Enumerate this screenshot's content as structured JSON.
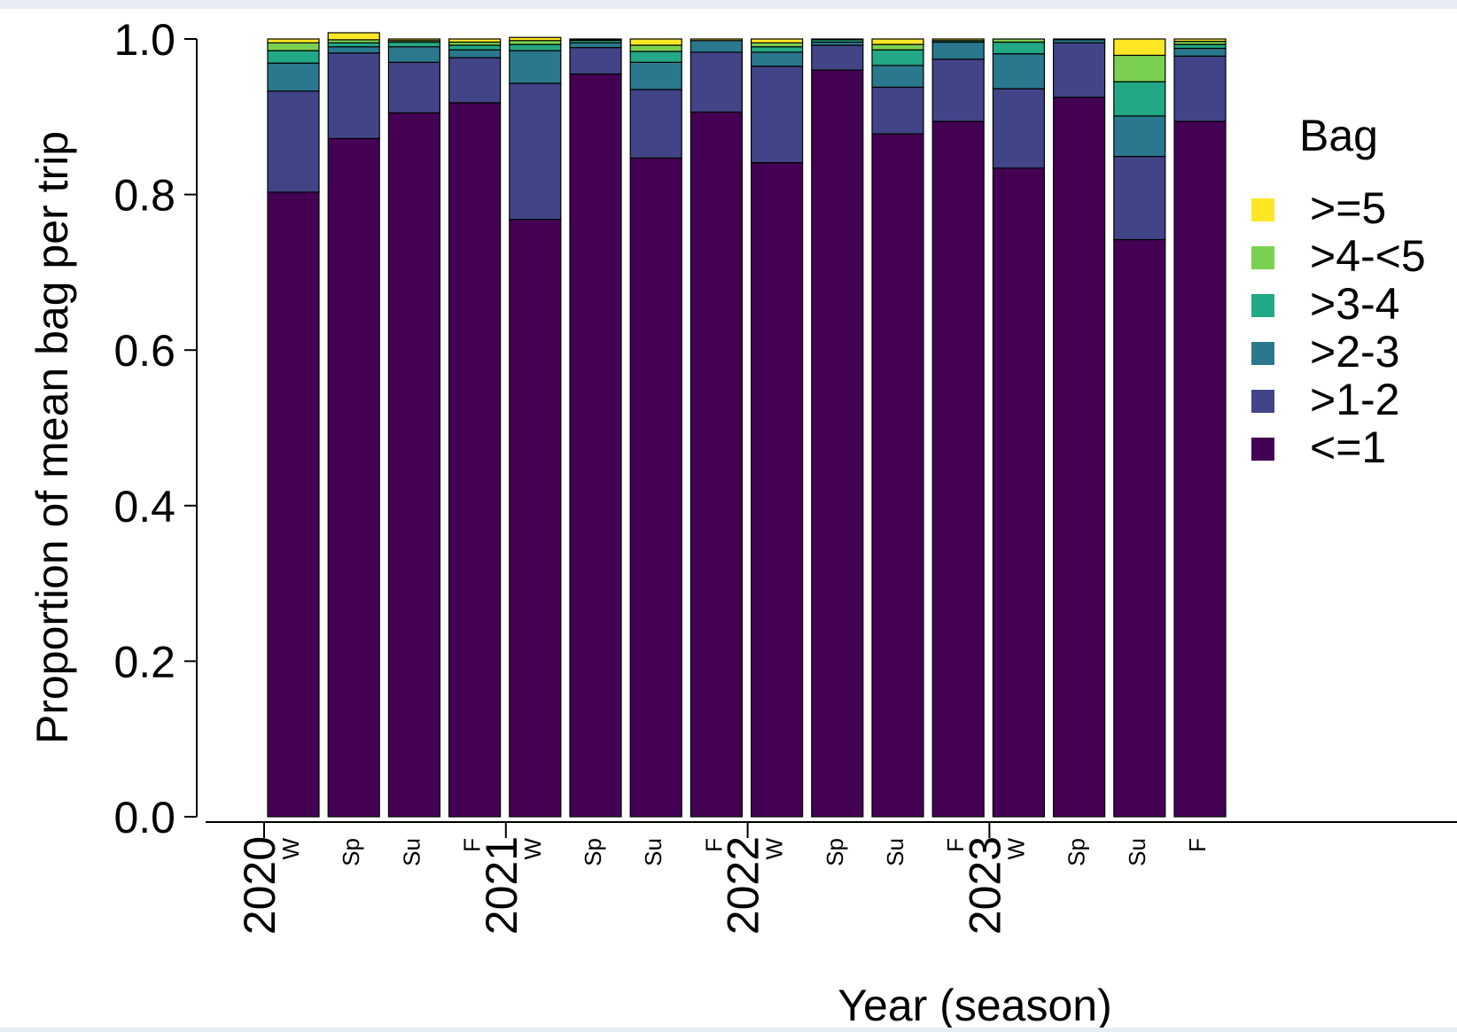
{
  "chart_data": {
    "type": "bar",
    "stacked": true,
    "title": "",
    "xlabel": "Year (season)",
    "ylabel": "Proportion of mean bag per trip",
    "ylim": [
      0,
      1
    ],
    "yticks": [
      "0.0",
      "0.2",
      "0.4",
      "0.6",
      "0.8",
      "1.0"
    ],
    "years": [
      "2020",
      "2021",
      "2022",
      "2023"
    ],
    "seasons_per_year": 4,
    "categories": [
      "W",
      "Sp",
      "Su",
      "F",
      "W",
      "Sp",
      "Su",
      "F",
      "W",
      "Sp",
      "Su",
      "F",
      "W",
      "Sp",
      "Su",
      "F"
    ],
    "legend_title": "Bag",
    "legend_position": "right",
    "grid": false,
    "series": [
      {
        "name": "<=1",
        "color": "#440154",
        "values": [
          0.803,
          0.872,
          0.905,
          0.918,
          0.768,
          0.955,
          0.847,
          0.906,
          0.841,
          0.96,
          0.878,
          0.894,
          0.834,
          0.925,
          0.742,
          0.894
        ]
      },
      {
        "name": ">1-2",
        "color": "#414487",
        "values": [
          0.13,
          0.11,
          0.065,
          0.058,
          0.175,
          0.034,
          0.088,
          0.077,
          0.124,
          0.032,
          0.06,
          0.08,
          0.102,
          0.07,
          0.107,
          0.084
        ]
      },
      {
        "name": ">2-3",
        "color": "#2a788e",
        "values": [
          0.036,
          0.008,
          0.02,
          0.01,
          0.042,
          0.006,
          0.035,
          0.015,
          0.018,
          0.004,
          0.028,
          0.022,
          0.045,
          0.004,
          0.052,
          0.01
        ]
      },
      {
        "name": ">3-4",
        "color": "#22a884",
        "values": [
          0.016,
          0.005,
          0.006,
          0.006,
          0.008,
          0.003,
          0.014,
          0.0,
          0.007,
          0.003,
          0.02,
          0.002,
          0.015,
          0.0,
          0.044,
          0.005
        ]
      },
      {
        "name": ">4-<5",
        "color": "#7ad151",
        "values": [
          0.01,
          0.004,
          0.002,
          0.004,
          0.005,
          0.001,
          0.008,
          0.0,
          0.005,
          0.001,
          0.007,
          0.0,
          0.004,
          0.0,
          0.034,
          0.004
        ]
      },
      {
        "name": ">=5",
        "color": "#fde725",
        "values": [
          0.005,
          0.009,
          0.002,
          0.004,
          0.004,
          0.001,
          0.008,
          0.002,
          0.005,
          0.0,
          0.007,
          0.002,
          0.0,
          0.001,
          0.021,
          0.003
        ]
      }
    ]
  }
}
